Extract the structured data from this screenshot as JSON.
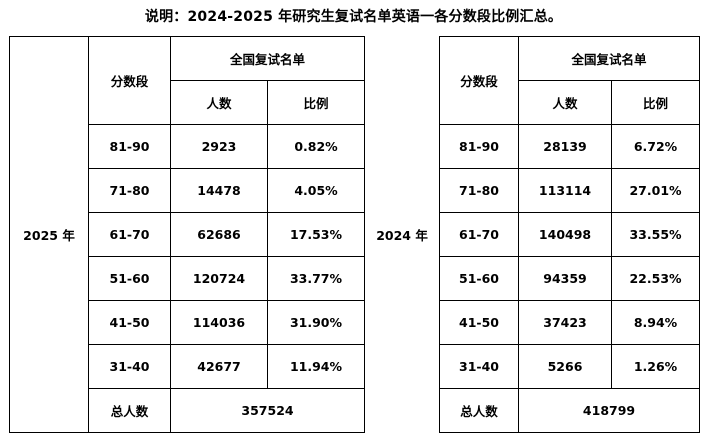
{
  "title": "说明：2024-2025 年研究生复试名单英语一各分数段比例汇总。",
  "headers": {
    "score_range": "分数段",
    "national_list": "全国复试名单",
    "count": "人数",
    "ratio": "比例",
    "total": "总人数"
  },
  "left": {
    "year": "2025 年",
    "rows": [
      {
        "range": "81-90",
        "count": "2923",
        "ratio": "0.82%"
      },
      {
        "range": "71-80",
        "count": "14478",
        "ratio": "4.05%"
      },
      {
        "range": "61-70",
        "count": "62686",
        "ratio": "17.53%"
      },
      {
        "range": "51-60",
        "count": "120724",
        "ratio": "33.77%"
      },
      {
        "range": "41-50",
        "count": "114036",
        "ratio": "31.90%"
      },
      {
        "range": "31-40",
        "count": "42677",
        "ratio": "11.94%"
      }
    ],
    "total": "357524"
  },
  "right": {
    "year": "2024 年",
    "rows": [
      {
        "range": "81-90",
        "count": "28139",
        "ratio": "6.72%"
      },
      {
        "range": "71-80",
        "count": "113114",
        "ratio": "27.01%"
      },
      {
        "range": "61-70",
        "count": "140498",
        "ratio": "33.55%"
      },
      {
        "range": "51-60",
        "count": "94359",
        "ratio": "22.53%"
      },
      {
        "range": "41-50",
        "count": "37423",
        "ratio": "8.94%"
      },
      {
        "range": "31-40",
        "count": "5266",
        "ratio": "1.26%"
      }
    ],
    "total": "418799"
  }
}
